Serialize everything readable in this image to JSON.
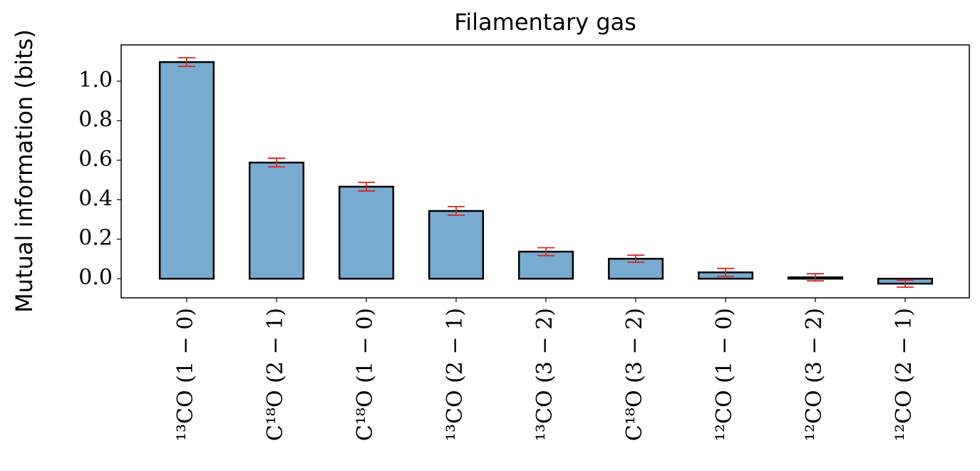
{
  "chart_data": {
    "type": "bar",
    "title": "Filamentary gas",
    "y_label": "Mutual information (bits)",
    "categories": [
      "¹³CO (1 − 0)",
      "C¹⁸O (2 − 1)",
      "C¹⁸O (1 − 0)",
      "¹³CO (2 − 1)",
      "¹³CO (3 − 2)",
      "C¹⁸O (3 − 2)",
      "¹²CO (1 − 0)",
      "¹²CO (3 − 2)",
      "¹²CO (2 − 1)"
    ],
    "values": [
      1.097,
      0.588,
      0.466,
      0.343,
      0.137,
      0.101,
      0.032,
      0.007,
      -0.025
    ],
    "errors": [
      0.022,
      0.022,
      0.022,
      0.022,
      0.02,
      0.018,
      0.02,
      0.018,
      0.018
    ],
    "color": "#77acd0",
    "edge_color": "#000000",
    "error_color": "#d62728",
    "ylim": [
      -0.097,
      1.184
    ],
    "yticks": [
      {
        "value": 0,
        "label": "0.0"
      },
      0.2,
      0.4,
      0.6,
      0.8,
      {
        "value": 1,
        "label": "1.0"
      }
    ],
    "grid": false
  }
}
